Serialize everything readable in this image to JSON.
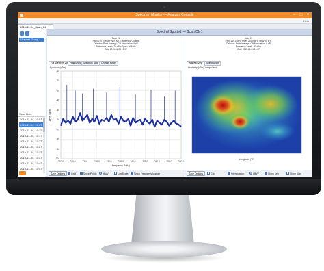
{
  "app": {
    "title": "Spectrum Monitor — Analysis Console",
    "menu_help": "Help",
    "doc_tab": "2015-11-04_Scan_01",
    "accent": "#f08a2a"
  },
  "left_pane": {
    "selected": "Channel Group 1",
    "date_header": "Scan Date",
    "dates": [
      "2015-11-04, 10:02",
      "2015-11-04, 10:07",
      "2015-11-04, 10:12",
      "2015-11-04, 10:17",
      "2015-11-04, 10:22",
      "2015-11-04, 10:27",
      "2015-11-04, 10:32",
      "2015-11-04, 10:37",
      "2015-11-04, 10:42",
      "2015-11-04, 10:47"
    ],
    "selected_date_index": 1
  },
  "panel": {
    "title": "Spectral Spotted — Scan Ch 1"
  },
  "spectrum": {
    "info_lines": [
      "Scan 01",
      "Fmin 210.0 MHz  Fmax 260.0 MHz  RBW 25 kHz",
      "Detector: Peak  Average: Off  Attenuation: 0 dB",
      "Reference Level: -20 dBm  Span: 50 MHz",
      "Date 2015-11-04  10:07"
    ],
    "tabs": [
      "Full Spectrum View",
      "Peak Search",
      "Spectrum Table",
      "Channel Power"
    ],
    "active_tab": 0,
    "plot_title": "Spectrum (dBm)",
    "xlabel": "Frequency (MHz)",
    "ylabel": "Level (dBm)",
    "bottom": {
      "button": "Save Options",
      "grid": "Grid",
      "show_points": "Show Points",
      "dbuv": "dBµV",
      "dbm": "dBm",
      "log_scale": "Log Scale",
      "show_freq_marker": "Show Frequency Marker"
    },
    "line_color": "#1b2fa3"
  },
  "chart_data": {
    "type": "line",
    "xlabel": "Frequency (MHz)",
    "ylabel": "Level (dBm)",
    "xlim": [
      210,
      260
    ],
    "ylim": [
      -100,
      -10
    ],
    "x_ticks": [
      210,
      215,
      220,
      225,
      230,
      235,
      240,
      245,
      250,
      255,
      260
    ],
    "y_ticks": [
      -10,
      -20,
      -30,
      -40,
      -50,
      -60,
      -70,
      -80,
      -90,
      -100
    ],
    "grid": true,
    "series": [
      {
        "x": [
          210.0,
          211.0,
          212.0,
          213.0,
          214.0,
          215.0,
          216.0,
          217.0,
          218.0,
          219.0,
          220.0,
          221.0,
          222.0,
          223.0,
          224.0,
          225.0,
          226.0,
          227.0,
          228.0,
          229.0,
          230.0,
          231.0,
          232.0,
          233.0,
          234.0,
          235.0,
          236.0,
          237.0,
          238.0,
          239.0,
          240.0,
          241.0,
          242.0,
          243.0,
          244.0,
          245.0,
          246.0,
          247.0,
          248.0,
          249.0,
          250.0,
          251.0,
          252.0,
          253.0,
          254.0,
          255.0,
          256.0,
          257.0,
          258.0,
          259.0,
          260.0
        ],
        "y": [
          -66,
          -59,
          -63,
          -61,
          -64,
          -57,
          -62,
          -60,
          -53,
          -61,
          -58,
          -55,
          -63,
          -59,
          -62,
          -56,
          -64,
          -60,
          -61,
          -58,
          -62,
          -55,
          -60,
          -59,
          -64,
          -57,
          -61,
          -62,
          -59,
          -66,
          -58,
          -63,
          -61,
          -60,
          -65,
          -59,
          -62,
          -64,
          -60,
          -67,
          -61,
          -63,
          -65,
          -60,
          -62,
          -66,
          -63,
          -61,
          -64,
          -65,
          -67
        ]
      }
    ],
    "peaks": [
      {
        "x": 212.5,
        "y": -24
      },
      {
        "x": 216.0,
        "y": -30
      },
      {
        "x": 219.0,
        "y": -33
      },
      {
        "x": 223.5,
        "y": -28
      },
      {
        "x": 229.0,
        "y": -32
      },
      {
        "x": 234.5,
        "y": -26
      },
      {
        "x": 241.0,
        "y": -34
      },
      {
        "x": 247.5,
        "y": -29
      },
      {
        "x": 253.0,
        "y": -36
      },
      {
        "x": 257.5,
        "y": -30
      }
    ]
  },
  "heatmap": {
    "info_lines": [
      "Scan 01",
      "Fmin 210.0 MHz  Fmax 260.0 MHz  RBW 25 kHz",
      "Detector: Peak  Average: Off  Attenuation: 0 dB",
      "Reference Level: -20 dBm",
      "Date 2015-11-04  10:07"
    ],
    "tabs": [
      "Waterfall View",
      "Spectrogram"
    ],
    "active_tab": 0,
    "plot_title": "Heat map (dBm), Interpolated",
    "xlabel": "Longitude (°E)",
    "bottom": {
      "button": "Save Options",
      "grid": "Grid",
      "interpolation": "Interpolation",
      "dbuv": "dBµV",
      "dbm": "dBm",
      "show_key": "Show Key",
      "show_map": "Show Map"
    }
  }
}
